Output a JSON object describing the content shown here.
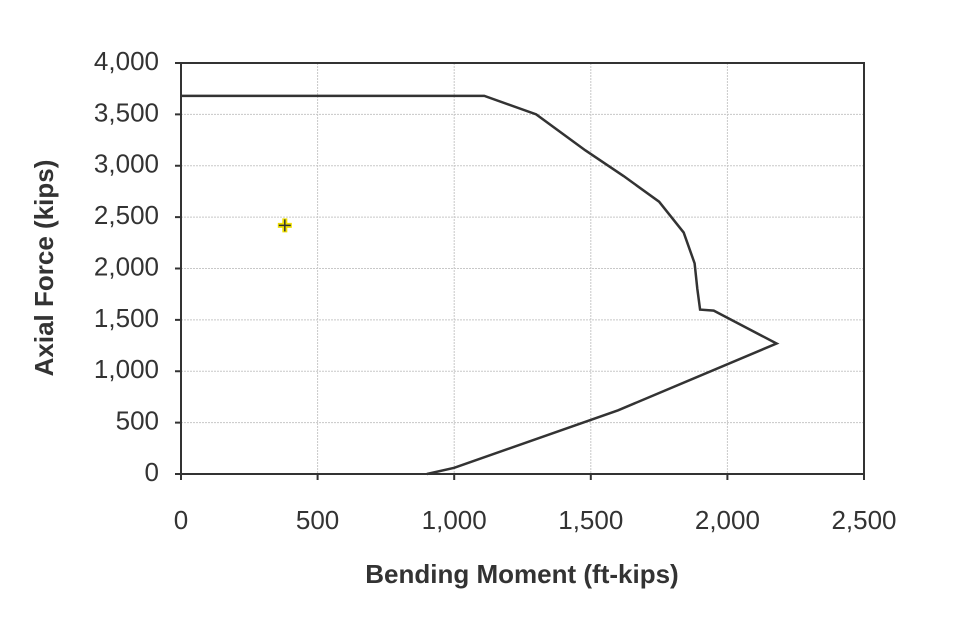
{
  "chart_data": {
    "type": "line",
    "xlabel": "Bending Moment (ft-kips)",
    "ylabel": "Axial Force (kips)",
    "xlim": [
      0,
      2500
    ],
    "ylim": [
      0,
      4000
    ],
    "xticks": [
      0,
      500,
      {
        "value": 1000,
        "label": "1,000"
      },
      {
        "value": 1500,
        "label": "1,500"
      },
      {
        "value": 2000,
        "label": "2,000"
      },
      {
        "value": 2500,
        "label": "2,500"
      }
    ],
    "yticks": [
      0,
      500,
      {
        "value": 1000,
        "label": "1,000"
      },
      {
        "value": 1500,
        "label": "1,500"
      },
      {
        "value": 2000,
        "label": "2,000"
      },
      {
        "value": 2500,
        "label": "2,500"
      },
      {
        "value": 3000,
        "label": "3,000"
      },
      {
        "value": 3500,
        "label": "3,500"
      },
      {
        "value": 4000,
        "label": "4,000"
      }
    ],
    "grid": true,
    "series": [
      {
        "type": "line",
        "color": "#333333",
        "x": [
          0,
          1110,
          1300,
          1480,
          1620,
          1750,
          1840,
          1880,
          1890,
          1900,
          1950,
          2180,
          1600,
          1000,
          900
        ],
        "values": [
          3680,
          3680,
          3500,
          3150,
          2900,
          2650,
          2350,
          2050,
          1800,
          1600,
          1590,
          1270,
          620,
          60,
          0
        ]
      },
      {
        "type": "scatter",
        "color": "#f0e000",
        "x": [
          380
        ],
        "values": [
          2420
        ]
      }
    ]
  }
}
